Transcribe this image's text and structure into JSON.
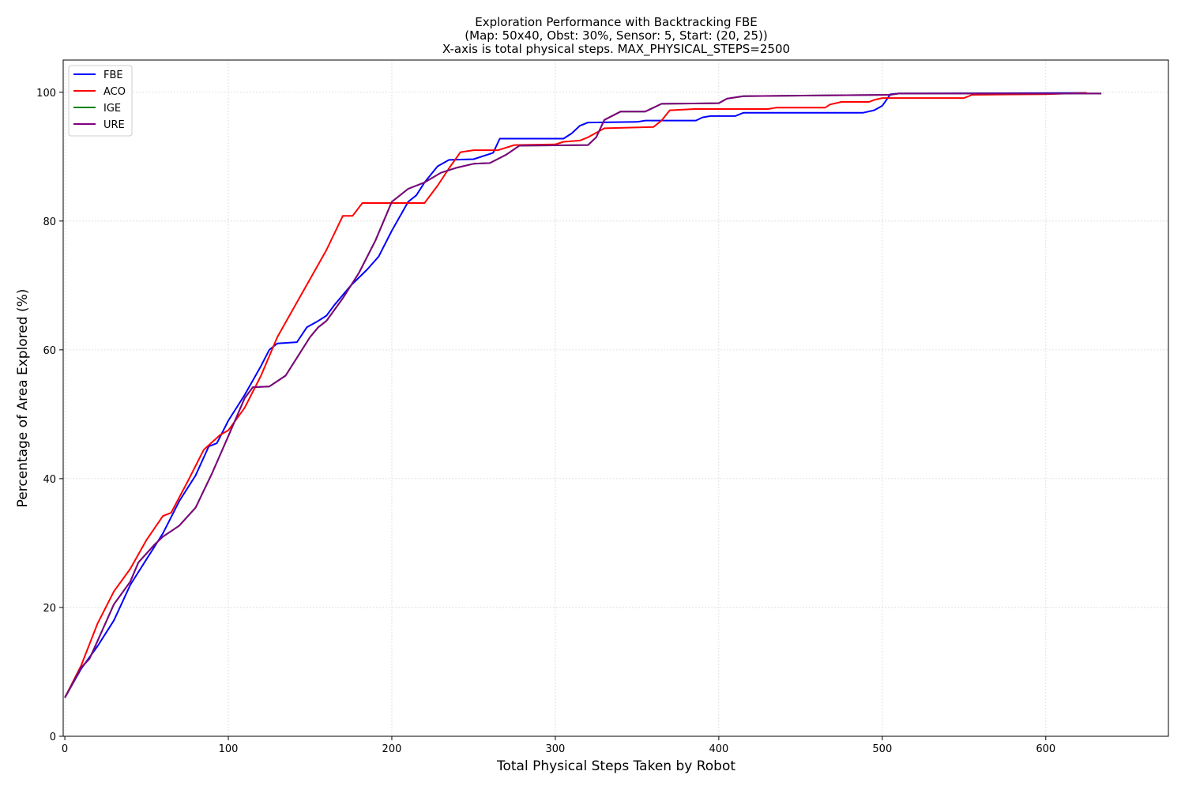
{
  "chart_data": {
    "type": "line",
    "title": [
      "Exploration Performance with Backtracking FBE",
      "(Map: 50x40, Obst: 30%, Sensor: 5, Start: (20, 25))",
      "X-axis is total physical steps. MAX_PHYSICAL_STEPS=2500"
    ],
    "xlabel": "Total Physical Steps Taken by Robot",
    "ylabel": "Percentage of Area Explored (%)",
    "xlim": [
      -1,
      675
    ],
    "ylim": [
      0,
      105
    ],
    "xticks": [
      0,
      100,
      200,
      300,
      400,
      500,
      600
    ],
    "yticks": [
      0,
      20,
      40,
      60,
      80,
      100
    ],
    "grid": true,
    "legend_position": "upper-left",
    "series": [
      {
        "name": "FBE",
        "color": "#0000ff",
        "points": [
          [
            0,
            6
          ],
          [
            10,
            10.5
          ],
          [
            20,
            14
          ],
          [
            30,
            18
          ],
          [
            40,
            23.5
          ],
          [
            50,
            27.5
          ],
          [
            55,
            29.5
          ],
          [
            60,
            31.5
          ],
          [
            70,
            36.5
          ],
          [
            80,
            40.5
          ],
          [
            88,
            45
          ],
          [
            93,
            45.5
          ],
          [
            100,
            49
          ],
          [
            110,
            53
          ],
          [
            120,
            57.5
          ],
          [
            125,
            60
          ],
          [
            130,
            61
          ],
          [
            142,
            61.2
          ],
          [
            148,
            63.5
          ],
          [
            155,
            64.5
          ],
          [
            160,
            65.3
          ],
          [
            165,
            67
          ],
          [
            175,
            70
          ],
          [
            185,
            72.5
          ],
          [
            192,
            74.5
          ],
          [
            200,
            78.5
          ],
          [
            210,
            83
          ],
          [
            215,
            84
          ],
          [
            220,
            86
          ],
          [
            228,
            88.5
          ],
          [
            235,
            89.5
          ],
          [
            250,
            89.6
          ],
          [
            262,
            90.6
          ],
          [
            266,
            92.8
          ],
          [
            305,
            92.8
          ],
          [
            310,
            93.6
          ],
          [
            315,
            94.8
          ],
          [
            320,
            95.3
          ],
          [
            350,
            95.4
          ],
          [
            355,
            95.6
          ],
          [
            386,
            95.6
          ],
          [
            390,
            96.1
          ],
          [
            395,
            96.3
          ],
          [
            410,
            96.3
          ],
          [
            415,
            96.8
          ],
          [
            488,
            96.8
          ],
          [
            495,
            97.2
          ],
          [
            500,
            97.9
          ],
          [
            505,
            99.7
          ],
          [
            510,
            99.8
          ],
          [
            625,
            99.9
          ]
        ]
      },
      {
        "name": "ACO",
        "color": "#ff0000",
        "points": [
          [
            0,
            6
          ],
          [
            10,
            11
          ],
          [
            20,
            17.5
          ],
          [
            30,
            22.5
          ],
          [
            40,
            26
          ],
          [
            50,
            30.5
          ],
          [
            60,
            34.2
          ],
          [
            65,
            34.7
          ],
          [
            75,
            39.5
          ],
          [
            85,
            44.5
          ],
          [
            95,
            46.8
          ],
          [
            100,
            47.5
          ],
          [
            110,
            51
          ],
          [
            120,
            56
          ],
          [
            130,
            62
          ],
          [
            140,
            66.5
          ],
          [
            150,
            71
          ],
          [
            160,
            75.5
          ],
          [
            170,
            80.8
          ],
          [
            176,
            80.8
          ],
          [
            182,
            82.8
          ],
          [
            220,
            82.8
          ],
          [
            228,
            85.5
          ],
          [
            235,
            88.2
          ],
          [
            242,
            90.7
          ],
          [
            250,
            91
          ],
          [
            265,
            91
          ],
          [
            275,
            91.8
          ],
          [
            300,
            91.9
          ],
          [
            305,
            92.3
          ],
          [
            315,
            92.5
          ],
          [
            320,
            93
          ],
          [
            330,
            94.4
          ],
          [
            360,
            94.6
          ],
          [
            365,
            95.6
          ],
          [
            370,
            97.2
          ],
          [
            385,
            97.4
          ],
          [
            430,
            97.4
          ],
          [
            435,
            97.6
          ],
          [
            465,
            97.6
          ],
          [
            468,
            98.1
          ],
          [
            475,
            98.5
          ],
          [
            492,
            98.5
          ],
          [
            495,
            98.8
          ],
          [
            500,
            99.1
          ],
          [
            550,
            99.1
          ],
          [
            555,
            99.6
          ],
          [
            600,
            99.7
          ],
          [
            625,
            99.9
          ]
        ]
      },
      {
        "name": "IGE",
        "color": "#008000",
        "points": [
          [
            0,
            6
          ],
          [
            10,
            10.7
          ],
          [
            15,
            12
          ],
          [
            20,
            14.8
          ],
          [
            30,
            20.5
          ],
          [
            40,
            24
          ],
          [
            45,
            27
          ],
          [
            55,
            29.8
          ],
          [
            60,
            31
          ],
          [
            70,
            32.7
          ],
          [
            80,
            35.5
          ],
          [
            90,
            40.8
          ],
          [
            100,
            46.6
          ],
          [
            110,
            52.5
          ],
          [
            115,
            54.2
          ],
          [
            125,
            54.3
          ],
          [
            135,
            56
          ],
          [
            145,
            60
          ],
          [
            150,
            62
          ],
          [
            155,
            63.5
          ],
          [
            160,
            64.5
          ],
          [
            170,
            68
          ],
          [
            180,
            72
          ],
          [
            190,
            77
          ],
          [
            200,
            83
          ],
          [
            210,
            85
          ],
          [
            220,
            86
          ],
          [
            230,
            87.5
          ],
          [
            240,
            88.3
          ],
          [
            250,
            88.9
          ],
          [
            260,
            89
          ],
          [
            270,
            90.3
          ],
          [
            278,
            91.7
          ],
          [
            320,
            91.8
          ],
          [
            325,
            93
          ],
          [
            330,
            95.7
          ],
          [
            340,
            97
          ],
          [
            355,
            97
          ],
          [
            360,
            97.6
          ],
          [
            365,
            98.2
          ],
          [
            400,
            98.3
          ],
          [
            405,
            99
          ],
          [
            415,
            99.4
          ],
          [
            465,
            99.5
          ],
          [
            505,
            99.6
          ],
          [
            510,
            99.8
          ],
          [
            634,
            99.8
          ]
        ]
      },
      {
        "name": "URE",
        "color": "#800080",
        "points": [
          [
            0,
            6
          ],
          [
            10,
            10.7
          ],
          [
            15,
            12
          ],
          [
            20,
            14.8
          ],
          [
            30,
            20.5
          ],
          [
            40,
            24
          ],
          [
            45,
            27
          ],
          [
            55,
            29.8
          ],
          [
            60,
            31
          ],
          [
            70,
            32.7
          ],
          [
            80,
            35.5
          ],
          [
            90,
            40.8
          ],
          [
            100,
            46.6
          ],
          [
            110,
            52.5
          ],
          [
            115,
            54.2
          ],
          [
            125,
            54.3
          ],
          [
            135,
            56
          ],
          [
            145,
            60
          ],
          [
            150,
            62
          ],
          [
            155,
            63.5
          ],
          [
            160,
            64.5
          ],
          [
            170,
            68
          ],
          [
            180,
            72
          ],
          [
            190,
            77
          ],
          [
            200,
            83
          ],
          [
            210,
            85
          ],
          [
            220,
            86
          ],
          [
            230,
            87.5
          ],
          [
            240,
            88.3
          ],
          [
            250,
            88.9
          ],
          [
            260,
            89
          ],
          [
            270,
            90.3
          ],
          [
            278,
            91.7
          ],
          [
            320,
            91.8
          ],
          [
            325,
            93
          ],
          [
            330,
            95.7
          ],
          [
            340,
            97
          ],
          [
            355,
            97
          ],
          [
            360,
            97.6
          ],
          [
            365,
            98.2
          ],
          [
            400,
            98.3
          ],
          [
            405,
            99
          ],
          [
            415,
            99.4
          ],
          [
            465,
            99.5
          ],
          [
            505,
            99.6
          ],
          [
            510,
            99.8
          ],
          [
            634,
            99.8
          ]
        ]
      }
    ]
  }
}
